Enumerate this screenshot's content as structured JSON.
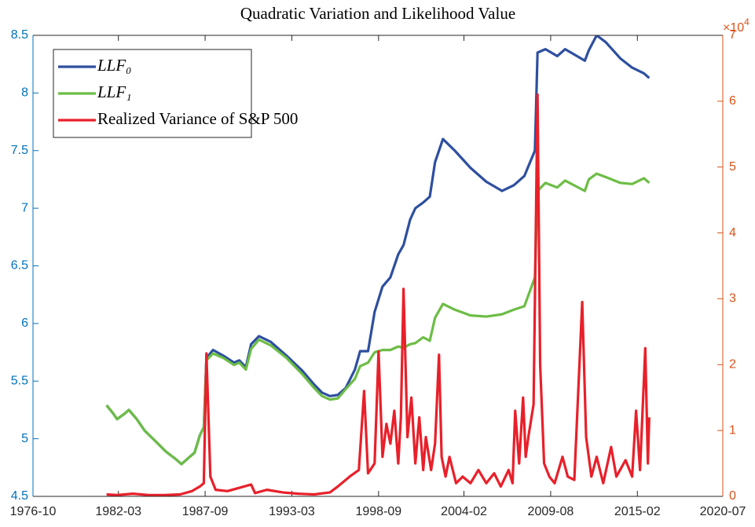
{
  "chart_data": {
    "type": "line",
    "title": "Quadratic Variation and Likelihood Value",
    "xlim": [
      "1976-10",
      "2020-07"
    ],
    "xticks": [
      "1976-10",
      "1982-03",
      "1987-09",
      "1993-03",
      "1998-09",
      "2004-02",
      "2009-08",
      "2015-02",
      "2020-07"
    ],
    "ylim": [
      4.5,
      8.5
    ],
    "yticks": [
      4.5,
      5,
      5.5,
      6,
      6.5,
      7,
      7.5,
      8,
      8.5
    ],
    "y2lim": [
      0,
      70000
    ],
    "y2ticks": [
      0,
      {
        "value": 10000,
        "label": "1"
      },
      {
        "value": 20000,
        "label": "2"
      },
      {
        "value": 30000,
        "label": "3"
      },
      {
        "value": 40000,
        "label": "4"
      },
      {
        "value": 50000,
        "label": "5"
      },
      {
        "value": 60000,
        "label": "6"
      },
      {
        "value": 70000,
        "label": "7"
      }
    ],
    "y2_multiplier": {
      "base": "×10",
      "exponent": "4"
    },
    "y_color": "#0072bd",
    "y2_color": "#d95319",
    "legend": "top-left",
    "series": [
      {
        "name": "LLF₀",
        "color": "#2e4fa0",
        "x": [
          "1981-06",
          "1981-11",
          "1982-02",
          "1982-08",
          "1982-11",
          "1983-05",
          "1983-11",
          "1984-08",
          "1985-03",
          "1985-11",
          "1986-03",
          "1986-08",
          "1987-01",
          "1987-05",
          "1987-08",
          "1987-10",
          "1988-03",
          "1988-11",
          "1989-07",
          "1989-11",
          "1990-04",
          "1990-08",
          "1991-02",
          "1991-11",
          "1992-11",
          "1993-11",
          "1994-08",
          "1995-02",
          "1995-08",
          "1996-02",
          "1996-08",
          "1997-03",
          "1997-07",
          "1998-01",
          "1998-06",
          "1998-12",
          "1999-06",
          "1999-12",
          "2000-04",
          "2000-09",
          "2001-01",
          "2001-07",
          "2001-12",
          "2002-04",
          "2002-10",
          "2003-07",
          "2004-07",
          "2005-07",
          "2006-07",
          "2007-04",
          "2007-12",
          "2008-08",
          "2008-10",
          "2009-04",
          "2010-01",
          "2010-07",
          "2011-10",
          "2012-01",
          "2012-07",
          "2013-02",
          "2014-01",
          "2014-10",
          "2015-07",
          "2015-11"
        ],
        "values": [
          5.29,
          5.22,
          5.17,
          5.22,
          5.25,
          5.17,
          5.07,
          4.97,
          4.89,
          4.82,
          4.78,
          4.83,
          4.88,
          5.03,
          5.1,
          5.7,
          5.77,
          5.72,
          5.66,
          5.68,
          5.62,
          5.82,
          5.89,
          5.84,
          5.72,
          5.59,
          5.47,
          5.4,
          5.37,
          5.38,
          5.44,
          5.6,
          5.76,
          5.76,
          6.1,
          6.32,
          6.4,
          6.6,
          6.68,
          6.9,
          7.0,
          7.05,
          7.1,
          7.4,
          7.6,
          7.5,
          7.35,
          7.23,
          7.15,
          7.2,
          7.28,
          7.5,
          8.35,
          8.38,
          8.32,
          8.38,
          8.28,
          8.37,
          8.5,
          8.44,
          8.3,
          8.22,
          8.17,
          8.13
        ]
      },
      {
        "name": "LLF₁",
        "color": "#6cbd45",
        "x": [
          "1981-06",
          "1981-11",
          "1982-02",
          "1982-08",
          "1982-11",
          "1983-05",
          "1983-11",
          "1984-08",
          "1985-03",
          "1985-11",
          "1986-03",
          "1986-08",
          "1987-01",
          "1987-05",
          "1987-08",
          "1987-10",
          "1988-03",
          "1988-11",
          "1989-07",
          "1989-11",
          "1990-04",
          "1990-08",
          "1991-02",
          "1991-11",
          "1992-11",
          "1993-11",
          "1994-08",
          "1995-02",
          "1995-08",
          "1996-02",
          "1996-08",
          "1997-03",
          "1997-07",
          "1998-01",
          "1998-06",
          "1998-12",
          "1999-06",
          "1999-12",
          "2000-04",
          "2000-09",
          "2001-01",
          "2001-07",
          "2001-12",
          "2002-04",
          "2002-10",
          "2003-07",
          "2004-07",
          "2005-07",
          "2006-07",
          "2007-04",
          "2007-12",
          "2008-08",
          "2008-10",
          "2009-04",
          "2010-01",
          "2010-07",
          "2011-10",
          "2012-01",
          "2012-07",
          "2013-02",
          "2014-01",
          "2014-10",
          "2015-07",
          "2015-11"
        ],
        "values": [
          5.29,
          5.22,
          5.17,
          5.22,
          5.25,
          5.17,
          5.07,
          4.97,
          4.89,
          4.82,
          4.78,
          4.83,
          4.88,
          5.03,
          5.1,
          5.68,
          5.74,
          5.7,
          5.64,
          5.66,
          5.6,
          5.78,
          5.86,
          5.81,
          5.7,
          5.56,
          5.44,
          5.37,
          5.34,
          5.35,
          5.43,
          5.52,
          5.63,
          5.66,
          5.75,
          5.77,
          5.77,
          5.8,
          5.79,
          5.82,
          5.83,
          5.88,
          5.85,
          6.05,
          6.17,
          6.12,
          6.07,
          6.06,
          6.08,
          6.12,
          6.15,
          6.4,
          7.15,
          7.22,
          7.18,
          7.24,
          7.15,
          7.25,
          7.3,
          7.27,
          7.22,
          7.21,
          7.26,
          7.22
        ]
      },
      {
        "name": "Realized Variance of S&P 500",
        "color": "#e8202a",
        "axis": "y2",
        "x": [
          "1981-06",
          "1982-02",
          "1983-02",
          "1984-02",
          "1985-02",
          "1986-02",
          "1986-11",
          "1987-05",
          "1987-08",
          "1987-10",
          "1988-01",
          "1988-05",
          "1989-02",
          "1990-08",
          "1990-11",
          "1991-08",
          "1992-08",
          "1993-08",
          "1994-08",
          "1995-08",
          "1996-02",
          "1996-11",
          "1997-06",
          "1997-10",
          "1998-01",
          "1998-06",
          "1998-09",
          "1998-12",
          "1999-03",
          "1999-06",
          "1999-09",
          "1999-12",
          "2000-02",
          "2000-04",
          "2000-07",
          "2000-10",
          "2001-01",
          "2001-04",
          "2001-07",
          "2001-09",
          "2002-01",
          "2002-04",
          "2002-07",
          "2002-09",
          "2002-12",
          "2003-03",
          "2003-08",
          "2004-01",
          "2004-07",
          "2005-01",
          "2005-07",
          "2006-01",
          "2006-06",
          "2006-12",
          "2007-03",
          "2007-05",
          "2007-08",
          "2007-11",
          "2008-01",
          "2008-03",
          "2008-07",
          "2008-10",
          "2008-12",
          "2009-03",
          "2009-07",
          "2009-11",
          "2010-05",
          "2010-09",
          "2011-02",
          "2011-08",
          "2011-11",
          "2012-03",
          "2012-07",
          "2012-12",
          "2013-06",
          "2013-10",
          "2014-05",
          "2014-10",
          "2015-01",
          "2015-04",
          "2015-08",
          "2015-10",
          "2015-11"
        ],
        "values": [
          300,
          200,
          400,
          200,
          200,
          300,
          800,
          1500,
          2000,
          21700,
          3000,
          1000,
          800,
          1800,
          500,
          1000,
          600,
          400,
          300,
          600,
          1500,
          3000,
          4000,
          16000,
          3500,
          5000,
          22000,
          6000,
          11000,
          8000,
          13000,
          5000,
          12000,
          31500,
          9000,
          15000,
          5000,
          12000,
          4000,
          9000,
          4000,
          8000,
          21500,
          6000,
          3000,
          6000,
          2000,
          3000,
          2000,
          4000,
          2000,
          3500,
          1500,
          4000,
          2000,
          13000,
          5000,
          15000,
          6000,
          9000,
          14000,
          61000,
          20000,
          5000,
          3000,
          2000,
          6000,
          3000,
          2500,
          29500,
          9000,
          3000,
          6000,
          2000,
          7500,
          3000,
          5500,
          3000,
          13000,
          4000,
          22500,
          5000,
          12000
        ]
      }
    ]
  }
}
